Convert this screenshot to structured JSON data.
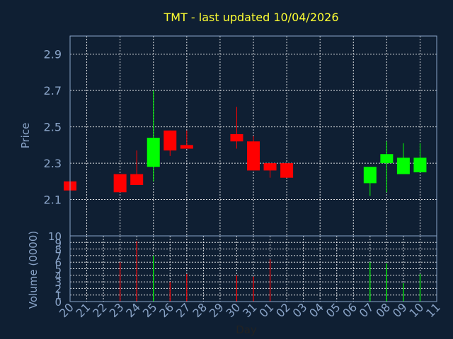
{
  "chart_data": {
    "type": "candlestick",
    "title": "TMT - last updated 10/04/2026",
    "price_axis": {
      "label": "Price",
      "ticks": [
        "2.9",
        "2.7",
        "2.5",
        "2.3",
        "2.1"
      ],
      "range": [
        1.9,
        3.0
      ]
    },
    "volume_axis": {
      "label": "Volume (0000)",
      "ticks": [
        "10",
        "9",
        "8",
        "7",
        "6",
        "5",
        "4",
        "3",
        "2",
        "1",
        "0"
      ],
      "range": [
        0,
        10
      ]
    },
    "xlabel": "Day",
    "days": [
      "20",
      "21",
      "22",
      "23",
      "24",
      "25",
      "26",
      "27",
      "28",
      "29",
      "30",
      "31",
      "01",
      "02",
      "03",
      "04",
      "05",
      "06",
      "07",
      "08",
      "09",
      "10",
      "11"
    ],
    "grid": true,
    "colors": {
      "up": "#00ff00",
      "down": "#ff0000",
      "background": "#0f1f33",
      "title": "#ffff33",
      "axis": "#8aa4c8"
    },
    "candles": [
      {
        "day": "20",
        "open": 2.2,
        "close": 2.15,
        "high": 2.2,
        "low": 2.15
      },
      {
        "day": "23",
        "open": 2.24,
        "close": 2.14,
        "high": 2.24,
        "low": 2.14
      },
      {
        "day": "24",
        "open": 2.24,
        "close": 2.18,
        "high": 2.37,
        "low": 2.18
      },
      {
        "day": "25",
        "open": 2.28,
        "close": 2.44,
        "high": 2.7,
        "low": 2.2
      },
      {
        "day": "26",
        "open": 2.48,
        "close": 2.37,
        "high": 2.48,
        "low": 2.34
      },
      {
        "day": "27",
        "open": 2.4,
        "close": 2.38,
        "high": 2.48,
        "low": 2.38
      },
      {
        "day": "30",
        "open": 2.46,
        "close": 2.42,
        "high": 2.61,
        "low": 2.38
      },
      {
        "day": "31",
        "open": 2.42,
        "close": 2.26,
        "high": 2.45,
        "low": 2.26
      },
      {
        "day": "01",
        "open": 2.3,
        "close": 2.26,
        "high": 2.3,
        "low": 2.22
      },
      {
        "day": "02",
        "open": 2.3,
        "close": 2.22,
        "high": 2.3,
        "low": 2.22
      },
      {
        "day": "07",
        "open": 2.19,
        "close": 2.28,
        "high": 2.28,
        "low": 2.12
      },
      {
        "day": "08",
        "open": 2.3,
        "close": 2.35,
        "high": 2.42,
        "low": 2.14
      },
      {
        "day": "09",
        "open": 2.24,
        "close": 2.33,
        "high": 2.41,
        "low": 2.24
      },
      {
        "day": "10",
        "open": 2.25,
        "close": 2.33,
        "high": 2.41,
        "low": 2.25
      }
    ],
    "volume": [
      {
        "day": "23",
        "value": 6.0,
        "dir": "down"
      },
      {
        "day": "24",
        "value": 9.2,
        "dir": "down"
      },
      {
        "day": "25",
        "value": 7.0,
        "dir": "up"
      },
      {
        "day": "26",
        "value": 3.0,
        "dir": "down"
      },
      {
        "day": "27",
        "value": 4.2,
        "dir": "down"
      },
      {
        "day": "30",
        "value": 4.0,
        "dir": "down"
      },
      {
        "day": "31",
        "value": 3.8,
        "dir": "down"
      },
      {
        "day": "01",
        "value": 6.4,
        "dir": "down"
      },
      {
        "day": "07",
        "value": 6.0,
        "dir": "up"
      },
      {
        "day": "08",
        "value": 5.8,
        "dir": "up"
      },
      {
        "day": "09",
        "value": 2.8,
        "dir": "up"
      },
      {
        "day": "10",
        "value": 4.2,
        "dir": "up"
      }
    ]
  }
}
